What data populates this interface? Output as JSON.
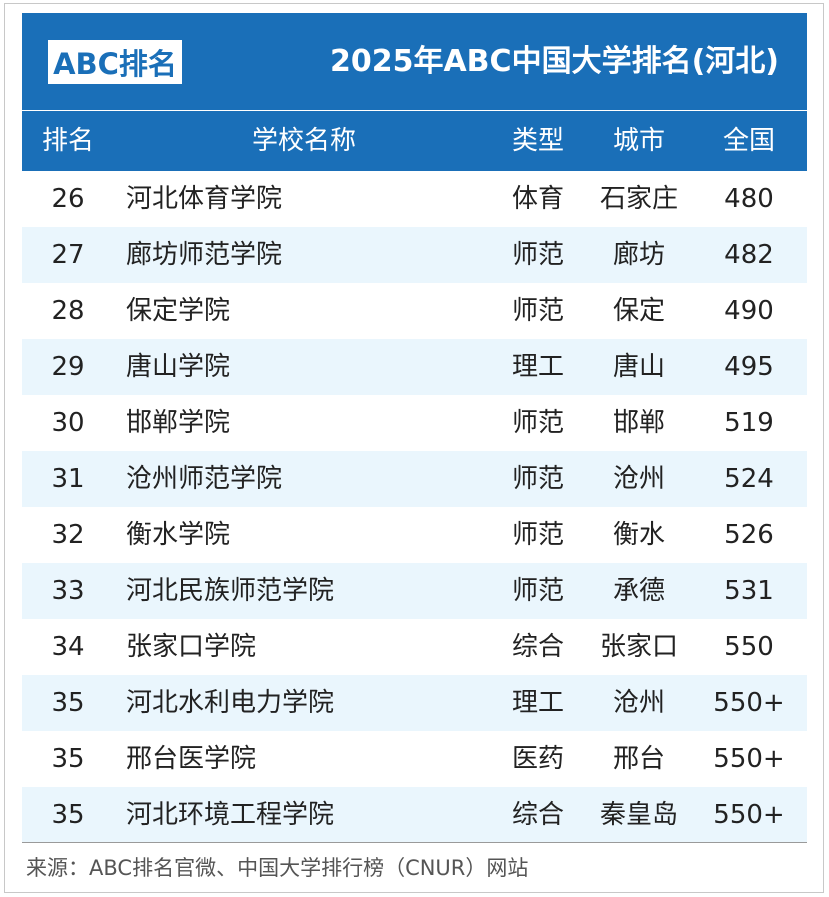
{
  "header": {
    "logo": "ABC排名",
    "title": "2025年ABC中国大学排名(河北)"
  },
  "columns": {
    "rank": "排名",
    "name": "学校名称",
    "type": "类型",
    "city": "城市",
    "national": "全国"
  },
  "rows": [
    {
      "rank": "26",
      "name": "河北体育学院",
      "type": "体育",
      "city": "石家庄",
      "national": "480"
    },
    {
      "rank": "27",
      "name": "廊坊师范学院",
      "type": "师范",
      "city": "廊坊",
      "national": "482"
    },
    {
      "rank": "28",
      "name": "保定学院",
      "type": "师范",
      "city": "保定",
      "national": "490"
    },
    {
      "rank": "29",
      "name": "唐山学院",
      "type": "理工",
      "city": "唐山",
      "national": "495"
    },
    {
      "rank": "30",
      "name": "邯郸学院",
      "type": "师范",
      "city": "邯郸",
      "national": "519"
    },
    {
      "rank": "31",
      "name": "沧州师范学院",
      "type": "师范",
      "city": "沧州",
      "national": "524"
    },
    {
      "rank": "32",
      "name": "衡水学院",
      "type": "师范",
      "city": "衡水",
      "national": "526"
    },
    {
      "rank": "33",
      "name": "河北民族师范学院",
      "type": "师范",
      "city": "承德",
      "national": "531"
    },
    {
      "rank": "34",
      "name": "张家口学院",
      "type": "综合",
      "city": "张家口",
      "national": "550"
    },
    {
      "rank": "35",
      "name": "河北水利电力学院",
      "type": "理工",
      "city": "沧州",
      "national": "550+"
    },
    {
      "rank": "35",
      "name": "邢台医学院",
      "type": "医药",
      "city": "邢台",
      "national": "550+"
    },
    {
      "rank": "35",
      "name": "河北环境工程学院",
      "type": "综合",
      "city": "秦皇岛",
      "national": "550+"
    }
  ],
  "footer": {
    "source": "来源：ABC排名官微、中国大学排行榜（CNUR）网站"
  },
  "colors": {
    "header_blue": "#1a6fb8",
    "row_alt": "#eaf6fd",
    "text": "#222222"
  }
}
